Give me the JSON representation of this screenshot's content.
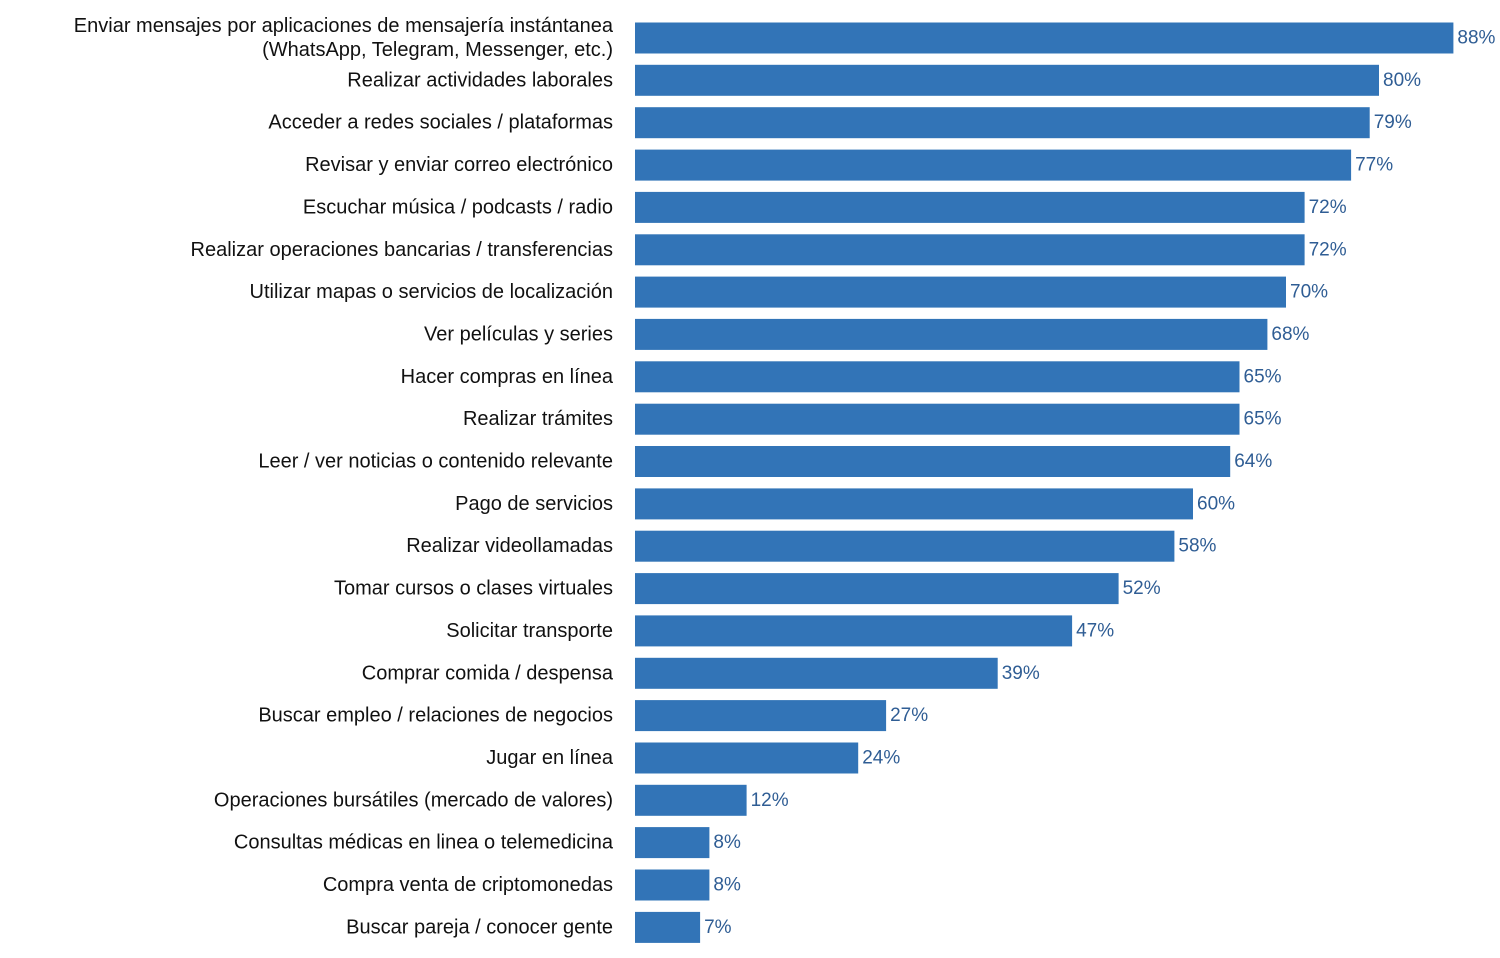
{
  "chart_data": {
    "type": "bar",
    "orientation": "horizontal",
    "bar_color": "#3274b7",
    "value_label_color": "#2f5d94",
    "categories": [
      [
        "Enviar mensajes por aplicaciones de mensajería instántanea",
        "(WhatsApp, Telegram, Messenger, etc.)"
      ],
      [
        "Realizar actividades laborales"
      ],
      [
        "Acceder a redes sociales / plataformas"
      ],
      [
        "Revisar y enviar correo electrónico"
      ],
      [
        "Escuchar música / podcasts / radio"
      ],
      [
        "Realizar operaciones bancarias / transferencias"
      ],
      [
        "Utilizar mapas o servicios de localización"
      ],
      [
        "Ver películas y series"
      ],
      [
        "Hacer compras en línea"
      ],
      [
        "Realizar trámites"
      ],
      [
        "Leer / ver noticias o contenido relevante"
      ],
      [
        "Pago de servicios"
      ],
      [
        "Realizar videollamadas"
      ],
      [
        "Tomar cursos o clases virtuales"
      ],
      [
        "Solicitar transporte"
      ],
      [
        "Comprar comida / despensa"
      ],
      [
        "Buscar empleo / relaciones de negocios"
      ],
      [
        "Jugar en línea"
      ],
      [
        "Operaciones bursátiles (mercado de valores)"
      ],
      [
        "Consultas médicas en linea o telemedicina"
      ],
      [
        "Compra venta de criptomonedas"
      ],
      [
        "Buscar pareja / conocer gente"
      ]
    ],
    "values": [
      88,
      80,
      79,
      77,
      72,
      72,
      70,
      68,
      65,
      65,
      64,
      60,
      58,
      52,
      47,
      39,
      27,
      24,
      12,
      8,
      8,
      7
    ],
    "value_labels": [
      "88%",
      "80%",
      "79%",
      "77%",
      "72%",
      "72%",
      "70%",
      "68%",
      "65%",
      "65%",
      "64%",
      "60%",
      "58%",
      "52%",
      "47%",
      "39%",
      "27%",
      "24%",
      "12%",
      "8%",
      "8%",
      "7%"
    ],
    "unit": "%",
    "xlim": [
      0,
      100
    ],
    "grid": false,
    "legend": "none"
  }
}
